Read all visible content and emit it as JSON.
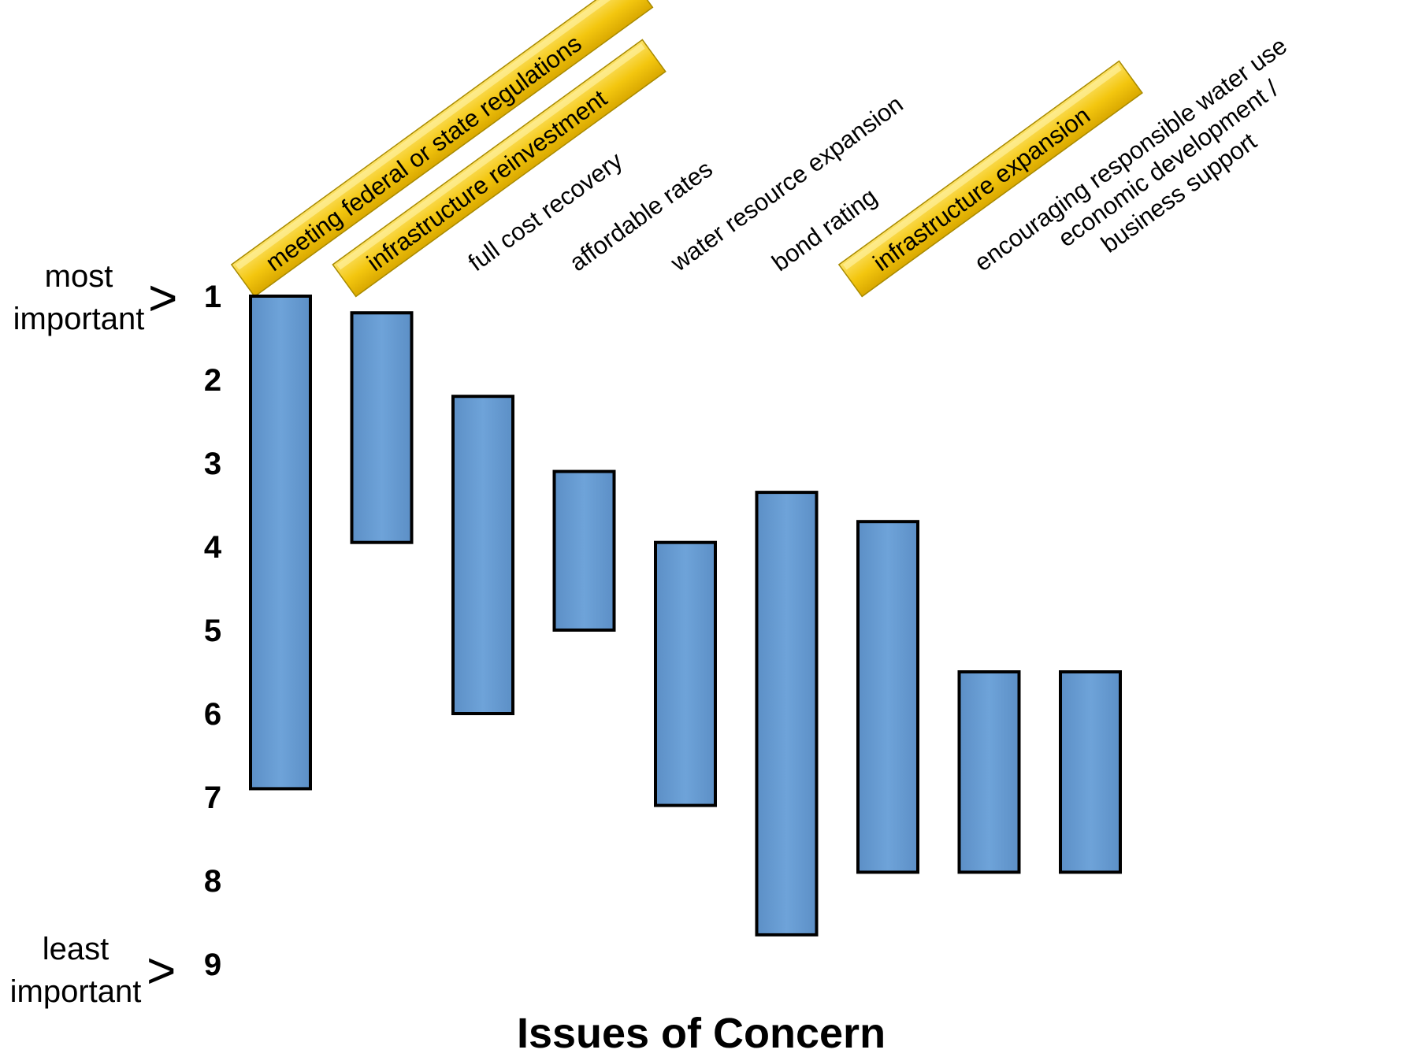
{
  "chart_data": {
    "type": "floating-bar",
    "title": "",
    "xlabel": "Issues of Concern",
    "ylabel": "",
    "ylim": [
      1,
      9
    ],
    "y_inverted": true,
    "y_ticks": [
      "1",
      "2",
      "3",
      "4",
      "5",
      "6",
      "7",
      "8",
      "9"
    ],
    "y_top_annotation": [
      "most",
      "important"
    ],
    "y_bottom_annotation": [
      "least",
      "important"
    ],
    "grid": false,
    "categories": [
      {
        "label": [
          "meeting federal or state regulations"
        ],
        "low": 1.0,
        "high": 6.9,
        "highlighted": true
      },
      {
        "label": [
          "infrastructure reinvestment"
        ],
        "low": 1.2,
        "high": 3.95,
        "highlighted": true
      },
      {
        "label": [
          "full cost recovery"
        ],
        "low": 2.2,
        "high": 6.0,
        "highlighted": false
      },
      {
        "label": [
          "affordable rates"
        ],
        "low": 3.1,
        "high": 5.0,
        "highlighted": false
      },
      {
        "label": [
          "water resource expansion"
        ],
        "low": 3.95,
        "high": 7.1,
        "highlighted": false
      },
      {
        "label": [
          "bond rating"
        ],
        "low": 3.35,
        "high": 8.65,
        "highlighted": false
      },
      {
        "label": [
          "infrastructure expansion"
        ],
        "low": 3.7,
        "high": 7.9,
        "highlighted": true
      },
      {
        "label": [
          "encouraging responsible water use"
        ],
        "low": 5.5,
        "high": 7.9,
        "highlighted": false
      },
      {
        "label": [
          "economic development /",
          "business support"
        ],
        "low": 5.5,
        "high": 7.9,
        "highlighted": false
      }
    ],
    "colors": {
      "bar_fill": "#6a9ed4",
      "bar_stroke": "#000000",
      "highlight_fill": "#f3c60f",
      "highlight_stroke": "#a88a00"
    }
  }
}
